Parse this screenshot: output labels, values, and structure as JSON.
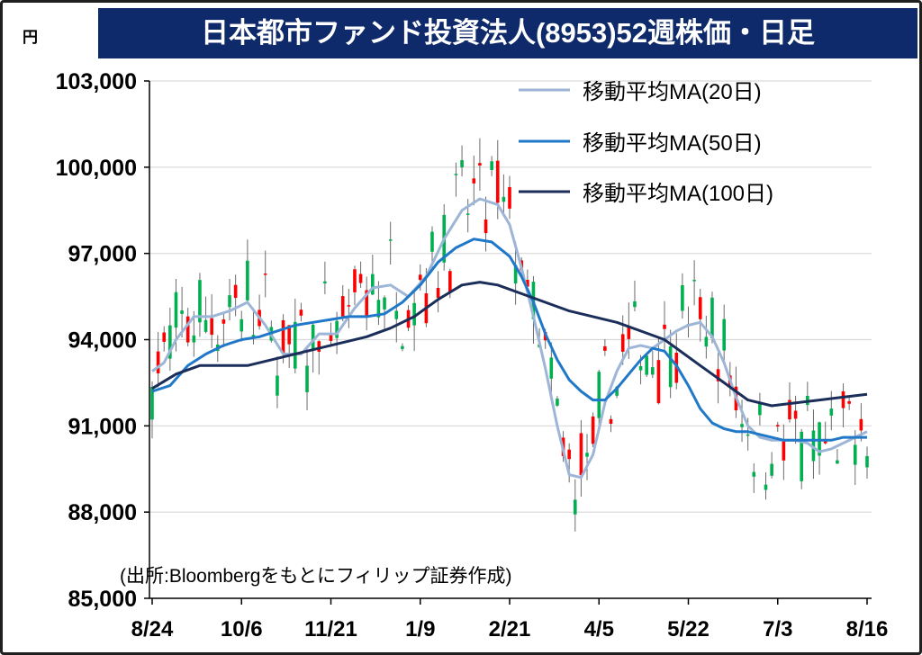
{
  "chart_data": {
    "type": "candlestick",
    "title": "日本都市ファンド投資法人(8953)52週株価・日足",
    "unit_label": "円",
    "source_note": "(出所:Bloombergをもとにフィリップ証券作成)",
    "ylim": [
      85000,
      103000
    ],
    "y_ticks": [
      85000,
      88000,
      91000,
      94000,
      97000,
      100000,
      103000
    ],
    "y_tick_labels": [
      "85,000",
      "88,000",
      "91,000",
      "94,000",
      "97,000",
      "100,000",
      "103,000"
    ],
    "x_tick_labels": [
      "8/24",
      "10/6",
      "11/21",
      "1/9",
      "2/21",
      "4/5",
      "5/22",
      "7/3",
      "8/16"
    ],
    "grid": "horizontal",
    "legend_position": "top-right",
    "colors": {
      "title_bg": "#0f2a6b",
      "title_text": "#ffffff",
      "candle_up": "#ff0000",
      "candle_down": "#00b050",
      "wick": "#6b6b6b",
      "grid": "#d9d9d9",
      "axis": "#000000"
    },
    "series": [
      {
        "name": "移動平均MA(20日)",
        "color": "#9db5d6",
        "points": [
          [
            0,
            92900
          ],
          [
            2,
            93200
          ],
          [
            4,
            94000
          ],
          [
            7,
            94800
          ],
          [
            10,
            94800
          ],
          [
            13,
            95000
          ],
          [
            16,
            95300
          ],
          [
            19,
            94500
          ],
          [
            22,
            93500
          ],
          [
            25,
            93500
          ],
          [
            28,
            94200
          ],
          [
            31,
            94200
          ],
          [
            34,
            95100
          ],
          [
            37,
            95800
          ],
          [
            40,
            95900
          ],
          [
            43,
            95500
          ],
          [
            46,
            96200
          ],
          [
            49,
            97500
          ],
          [
            52,
            98500
          ],
          [
            55,
            98900
          ],
          [
            58,
            98700
          ],
          [
            60,
            98000
          ],
          [
            62,
            96500
          ],
          [
            64,
            94800
          ],
          [
            66,
            93000
          ],
          [
            68,
            91000
          ],
          [
            70,
            89300
          ],
          [
            72,
            89200
          ],
          [
            74,
            90000
          ],
          [
            76,
            91800
          ],
          [
            78,
            92900
          ],
          [
            80,
            93700
          ],
          [
            82,
            93800
          ],
          [
            84,
            93700
          ],
          [
            86,
            94000
          ],
          [
            88,
            94300
          ],
          [
            90,
            94500
          ],
          [
            92,
            94600
          ],
          [
            94,
            94100
          ],
          [
            96,
            93200
          ],
          [
            98,
            92000
          ],
          [
            100,
            91000
          ],
          [
            102,
            90600
          ],
          [
            104,
            90500
          ],
          [
            106,
            90500
          ],
          [
            108,
            90500
          ],
          [
            110,
            90400
          ],
          [
            112,
            90100
          ],
          [
            114,
            90200
          ],
          [
            116,
            90400
          ],
          [
            118,
            90600
          ],
          [
            120,
            90800
          ]
        ]
      },
      {
        "name": "移動平均MA(50日)",
        "color": "#1f78c8",
        "points": [
          [
            0,
            92200
          ],
          [
            3,
            92400
          ],
          [
            6,
            93100
          ],
          [
            9,
            93500
          ],
          [
            12,
            93800
          ],
          [
            15,
            94000
          ],
          [
            18,
            94100
          ],
          [
            21,
            94300
          ],
          [
            24,
            94500
          ],
          [
            27,
            94600
          ],
          [
            30,
            94700
          ],
          [
            33,
            94800
          ],
          [
            36,
            94800
          ],
          [
            39,
            94900
          ],
          [
            42,
            95300
          ],
          [
            45,
            95900
          ],
          [
            48,
            96700
          ],
          [
            51,
            97200
          ],
          [
            54,
            97500
          ],
          [
            57,
            97400
          ],
          [
            60,
            96900
          ],
          [
            62,
            96200
          ],
          [
            64,
            95300
          ],
          [
            66,
            94200
          ],
          [
            68,
            93300
          ],
          [
            70,
            92600
          ],
          [
            72,
            92200
          ],
          [
            74,
            91900
          ],
          [
            76,
            91900
          ],
          [
            78,
            92300
          ],
          [
            80,
            92800
          ],
          [
            82,
            93300
          ],
          [
            84,
            93700
          ],
          [
            86,
            93600
          ],
          [
            88,
            93100
          ],
          [
            90,
            92400
          ],
          [
            92,
            91600
          ],
          [
            94,
            91100
          ],
          [
            96,
            90900
          ],
          [
            98,
            90800
          ],
          [
            100,
            90800
          ],
          [
            102,
            90700
          ],
          [
            104,
            90600
          ],
          [
            106,
            90500
          ],
          [
            108,
            90500
          ],
          [
            110,
            90500
          ],
          [
            112,
            90500
          ],
          [
            114,
            90500
          ],
          [
            116,
            90600
          ],
          [
            118,
            90600
          ],
          [
            120,
            90600
          ]
        ]
      },
      {
        "name": "移動平均MA(100日)",
        "color": "#1b2e5a",
        "points": [
          [
            0,
            92300
          ],
          [
            4,
            92800
          ],
          [
            8,
            93100
          ],
          [
            12,
            93100
          ],
          [
            16,
            93100
          ],
          [
            20,
            93300
          ],
          [
            24,
            93500
          ],
          [
            28,
            93700
          ],
          [
            32,
            93900
          ],
          [
            36,
            94100
          ],
          [
            40,
            94400
          ],
          [
            44,
            94800
          ],
          [
            48,
            95400
          ],
          [
            52,
            95900
          ],
          [
            55,
            96000
          ],
          [
            58,
            95900
          ],
          [
            62,
            95600
          ],
          [
            66,
            95300
          ],
          [
            70,
            95000
          ],
          [
            74,
            94800
          ],
          [
            78,
            94600
          ],
          [
            82,
            94300
          ],
          [
            86,
            94000
          ],
          [
            88,
            93700
          ],
          [
            90,
            93400
          ],
          [
            92,
            93100
          ],
          [
            94,
            92800
          ],
          [
            96,
            92500
          ],
          [
            98,
            92200
          ],
          [
            100,
            91900
          ],
          [
            104,
            91700
          ],
          [
            108,
            91800
          ],
          [
            112,
            91900
          ],
          [
            116,
            92000
          ],
          [
            120,
            92100
          ]
        ]
      }
    ]
  }
}
